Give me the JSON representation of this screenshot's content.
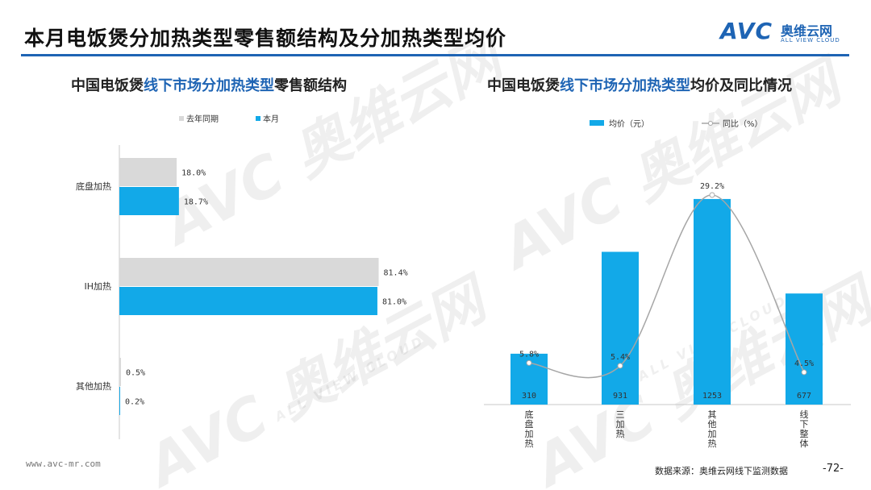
{
  "page_title": "本月电饭煲分加热类型零售额结构及分加热类型均价",
  "logo": {
    "avc": "AVC",
    "cn": "奥维云网",
    "en": "ALL VIEW CLOUD"
  },
  "watermark": {
    "big": "AVC 奥维云网",
    "small": "ALL VIEW CLOUD"
  },
  "left_subtitle": {
    "pre": "中国电饭煲",
    "highlight": "线下市场分加热类型",
    "post": "零售额结构"
  },
  "right_subtitle": {
    "pre": "中国电饭煲",
    "highlight": "线下市场分加热类型",
    "post": "均价及同比情况"
  },
  "footer": {
    "url": "www.avc-mr.com",
    "source": "数据来源：奥维云网线下监测数据",
    "page": "-72-"
  },
  "colors": {
    "accent": "#1e64b4",
    "bar_blue": "#12a9e8",
    "bar_gray": "#d9d9d9",
    "line_gray": "#a6a6a6"
  },
  "chart_data": [
    {
      "type": "bar",
      "orientation": "horizontal",
      "categories": [
        "底盘加热",
        "IH加热",
        "其他加热"
      ],
      "series": [
        {
          "name": "去年同期",
          "values": [
            18.0,
            81.4,
            0.5
          ],
          "labels": [
            "18.0%",
            "81.4%",
            "0.5%"
          ],
          "color": "#d9d9d9"
        },
        {
          "name": "本月",
          "values": [
            18.7,
            81.0,
            0.2
          ],
          "labels": [
            "18.7%",
            "81.0%",
            "0.2%"
          ],
          "color": "#12a9e8"
        }
      ],
      "xlim": [
        0,
        100
      ],
      "legend": "top",
      "grid": false
    },
    {
      "type": "bar",
      "categories": [
        "底盘加热",
        "三加热",
        "其他加热",
        "线下整体"
      ],
      "series": [
        {
          "name": "均价（元）",
          "type": "bar",
          "values": [
            310,
            931,
            1253,
            677
          ],
          "color": "#12a9e8"
        },
        {
          "name": "同比（%）",
          "type": "line",
          "values": [
            5.8,
            5.4,
            29.2,
            4.5
          ],
          "labels": [
            "5.8%",
            "5.4%",
            "29.2%",
            "4.5%"
          ],
          "color": "#a6a6a6"
        }
      ],
      "ylim_bar": [
        0,
        1400
      ],
      "ylim_line": [
        0,
        32
      ],
      "legend": "top",
      "grid": false
    }
  ]
}
